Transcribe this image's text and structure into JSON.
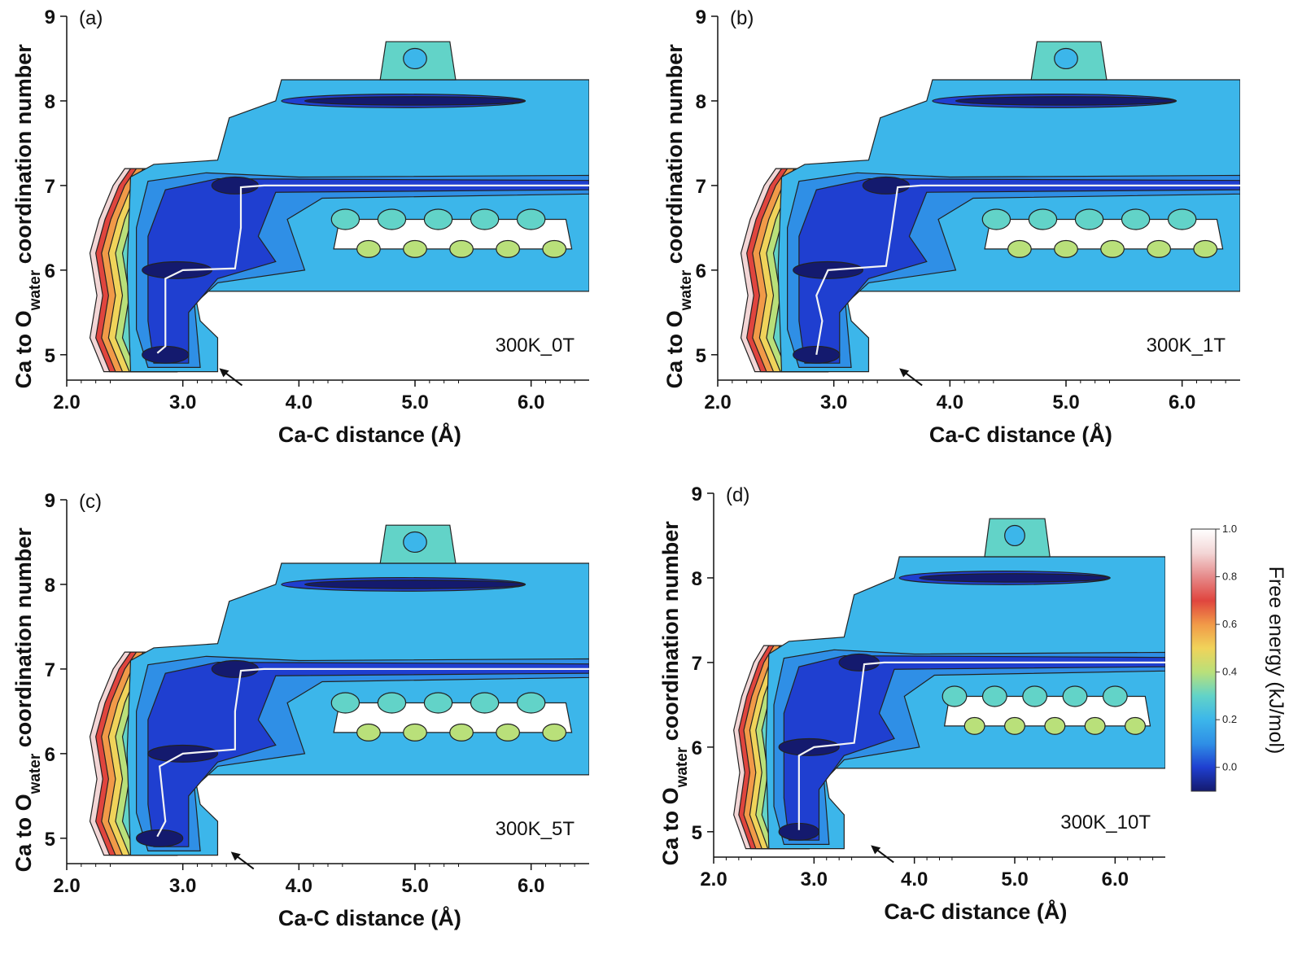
{
  "chart_data": [
    {
      "type": "heatmap",
      "panel_label": "(a)",
      "condition": "300K_0T",
      "xlabel": "Ca-C distance (Å)",
      "ylabel": {
        "pre": "Ca to O",
        "sub": "water",
        "post": " coordination number"
      },
      "xlim": [
        2.0,
        6.5
      ],
      "ylim": [
        4.7,
        9.0
      ],
      "xticks": [
        "2.0",
        "3.0",
        "4.0",
        "5.0",
        "6.0"
      ],
      "yticks": [
        "5",
        "6",
        "7",
        "8",
        "9"
      ],
      "minima": [
        [
          2.85,
          5.0
        ],
        [
          2.95,
          6.0
        ],
        [
          3.45,
          7.0
        ],
        [
          5.0,
          8.0
        ]
      ],
      "path": [
        [
          2.78,
          5.02
        ],
        [
          2.85,
          5.1
        ],
        [
          2.85,
          5.9
        ],
        [
          3.0,
          6.0
        ],
        [
          3.45,
          6.02
        ],
        [
          3.5,
          6.5
        ],
        [
          3.5,
          6.98
        ],
        [
          3.7,
          7.0
        ],
        [
          6.5,
          7.0
        ]
      ],
      "arrow_at": [
        3.3,
        4.85
      ]
    },
    {
      "type": "heatmap",
      "panel_label": "(b)",
      "condition": "300K_1T",
      "xlabel": "Ca-C distance (Å)",
      "ylabel": {
        "pre": "Ca to O",
        "sub": "water",
        "post": " coordination number"
      },
      "xlim": [
        2.0,
        6.5
      ],
      "ylim": [
        4.7,
        9.0
      ],
      "xticks": [
        "2.0",
        "3.0",
        "4.0",
        "5.0",
        "6.0"
      ],
      "yticks": [
        "5",
        "6",
        "7",
        "8",
        "9"
      ],
      "minima": [
        [
          2.85,
          5.0
        ],
        [
          2.95,
          6.0
        ],
        [
          3.45,
          7.0
        ],
        [
          5.0,
          8.0
        ]
      ],
      "path": [
        [
          2.85,
          5.0
        ],
        [
          2.9,
          5.4
        ],
        [
          2.85,
          5.7
        ],
        [
          2.95,
          6.0
        ],
        [
          3.45,
          6.05
        ],
        [
          3.5,
          6.5
        ],
        [
          3.55,
          6.98
        ],
        [
          3.75,
          7.0
        ],
        [
          6.5,
          7.0
        ]
      ],
      "arrow_at": [
        3.55,
        4.85
      ]
    },
    {
      "type": "heatmap",
      "panel_label": "(c)",
      "condition": "300K_5T",
      "xlabel": "Ca-C distance (Å)",
      "ylabel": {
        "pre": "Ca to O",
        "sub": "water",
        "post": " coordination number"
      },
      "xlim": [
        2.0,
        6.5
      ],
      "ylim": [
        4.7,
        9.0
      ],
      "xticks": [
        "2.0",
        "3.0",
        "4.0",
        "5.0",
        "6.0"
      ],
      "yticks": [
        "5",
        "6",
        "7",
        "8",
        "9"
      ],
      "minima": [
        [
          2.8,
          5.0
        ],
        [
          3.0,
          6.0
        ],
        [
          3.45,
          7.0
        ],
        [
          5.0,
          8.0
        ]
      ],
      "path": [
        [
          2.78,
          5.02
        ],
        [
          2.85,
          5.2
        ],
        [
          2.8,
          5.85
        ],
        [
          3.0,
          6.0
        ],
        [
          3.45,
          6.05
        ],
        [
          3.45,
          6.5
        ],
        [
          3.5,
          6.98
        ],
        [
          3.7,
          7.0
        ],
        [
          6.5,
          7.0
        ]
      ],
      "arrow_at": [
        3.4,
        4.85
      ]
    },
    {
      "type": "heatmap",
      "panel_label": "(d)",
      "condition": "300K_10T",
      "xlabel": "Ca-C distance (Å)",
      "ylabel": {
        "pre": "Ca to O",
        "sub": "water",
        "post": " coordination number"
      },
      "xlim": [
        2.0,
        6.5
      ],
      "ylim": [
        4.7,
        9.0
      ],
      "xticks": [
        "2.0",
        "3.0",
        "4.0",
        "5.0",
        "6.0"
      ],
      "yticks": [
        "5",
        "6",
        "7",
        "8",
        "9"
      ],
      "minima": [
        [
          2.85,
          5.0
        ],
        [
          2.95,
          6.0
        ],
        [
          3.45,
          7.0
        ],
        [
          5.0,
          8.0
        ]
      ],
      "path": [
        [
          2.85,
          5.02
        ],
        [
          2.85,
          5.9
        ],
        [
          3.0,
          6.0
        ],
        [
          3.4,
          6.05
        ],
        [
          3.45,
          6.5
        ],
        [
          3.5,
          6.98
        ],
        [
          3.7,
          7.0
        ],
        [
          6.5,
          7.0
        ]
      ],
      "arrow_at": [
        3.55,
        4.85
      ]
    }
  ],
  "colorbar": {
    "label": "Free energy (kJ/mol)",
    "range": [
      -0.1,
      1.0
    ],
    "ticks": [
      "0.0",
      "0.2",
      "0.4",
      "0.6",
      "0.8",
      "1.0"
    ],
    "colors": [
      "#141a6e",
      "#1f3fd0",
      "#2f8fe6",
      "#3cb6ea",
      "#62d3c8",
      "#b9e07a",
      "#f0d35a",
      "#f19a48",
      "#e0453e",
      "#e68a8a",
      "#f3d6d6",
      "#ffffff"
    ]
  }
}
